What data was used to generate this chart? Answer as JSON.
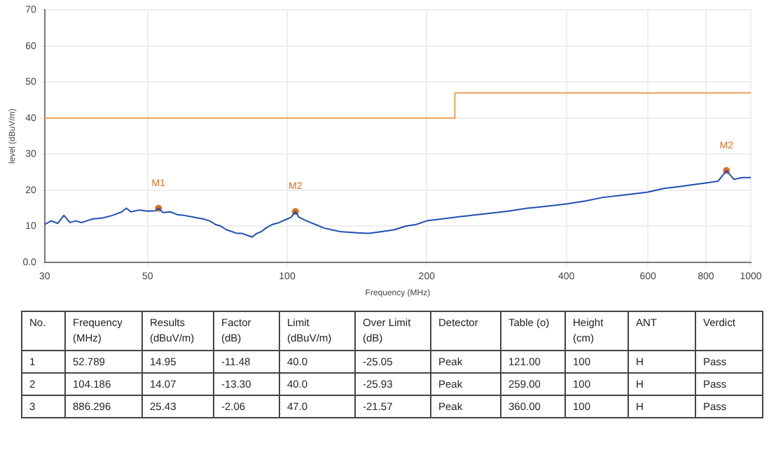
{
  "chart_data": {
    "type": "line",
    "xlabel": "Frequency (MHz)",
    "ylabel": "level (dBuV/m)",
    "log": "x",
    "xlim": [
      30,
      1000
    ],
    "xticks": [
      30,
      50,
      100,
      200,
      400,
      600,
      800,
      1000
    ],
    "ylim": [
      0,
      70
    ],
    "yticks": [
      {
        "value": 0,
        "label": "0.0"
      },
      10,
      20,
      30,
      40,
      50,
      60,
      70
    ],
    "grid": true,
    "legend": false,
    "series": [
      {
        "color": "#1f4fb4",
        "x": [
          30,
          31,
          32,
          33,
          34,
          35,
          36,
          38,
          40,
          42,
          44,
          45,
          46,
          48,
          50,
          52,
          52.789,
          54,
          56,
          58,
          60,
          63,
          66,
          68,
          70,
          72,
          74,
          76,
          78,
          80,
          82,
          84,
          86,
          88,
          90,
          93,
          96,
          100,
          102,
          104.186,
          106,
          110,
          115,
          120,
          125,
          130,
          140,
          150,
          160,
          170,
          180,
          190,
          200,
          215,
          230,
          250,
          270,
          300,
          330,
          360,
          400,
          440,
          480,
          520,
          560,
          600,
          650,
          700,
          750,
          800,
          850,
          886.296,
          920,
          960,
          1000
        ],
        "values": [
          10.5,
          11.5,
          10.8,
          13,
          11,
          11.5,
          11,
          12,
          12.3,
          13,
          14,
          15,
          14,
          14.5,
          14.2,
          14.3,
          14.95,
          13.8,
          14,
          13.2,
          13,
          12.5,
          12,
          11.5,
          10.5,
          10,
          9,
          8.5,
          8,
          8,
          7.5,
          7,
          8,
          8.5,
          9.5,
          10.5,
          11,
          12,
          12.5,
          14.07,
          12.5,
          11.5,
          10.5,
          9.5,
          9,
          8.5,
          8.2,
          8,
          8.5,
          9,
          10,
          10.5,
          11.5,
          12,
          12.5,
          13,
          13.5,
          14.2,
          15,
          15.5,
          16.2,
          17,
          18,
          18.5,
          19,
          19.5,
          20.5,
          21,
          21.5,
          22,
          22.5,
          25.43,
          23,
          23.5,
          23.5
        ]
      },
      {
        "color": "#f0a050",
        "x": [
          30,
          230,
          230,
          1000
        ],
        "values": [
          40,
          40,
          47,
          47
        ]
      },
      {
        "type": "scatter",
        "color": "#e07020",
        "marker": "circle",
        "x": [
          52.789,
          104.186,
          886.296
        ],
        "values": [
          14.95,
          14.07,
          25.43
        ]
      }
    ],
    "annotations": [
      {
        "text": "M1",
        "x": 52.789,
        "y": 14.95
      },
      {
        "text": "M2",
        "x": 104.186,
        "y": 14.07
      },
      {
        "text": "M2",
        "x": 886.296,
        "y": 25.43
      },
      "No.",
      "Frequency (MHz)",
      "Results (dBuV/m)",
      "Factor (dB)",
      "Limit (dBuV/m)",
      "Over Limit (dB)",
      "Detector",
      "Table (o)",
      "Height (cm)",
      "ANT",
      "Verdict",
      "1",
      "52.789",
      "14.95",
      "-11.48",
      "40.0",
      "-25.05",
      "Peak",
      "121.00",
      "100",
      "H",
      "Pass",
      "2",
      "104.186",
      "14.07",
      "-13.30",
      "40.0",
      "-25.93",
      "Peak",
      "259.00",
      "100",
      "H",
      "Pass",
      "3",
      "886.296",
      "25.43",
      "-2.06",
      "47.0",
      "-21.57",
      "Peak",
      "360.00",
      "100",
      "H",
      "Pass"
    ]
  }
}
